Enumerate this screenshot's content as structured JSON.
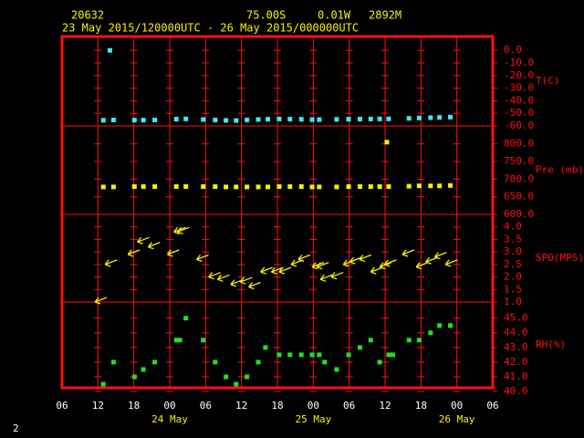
{
  "header": {
    "station": "20632",
    "latitude": "75.00S",
    "longitude": "0.01W",
    "elevation": "2892M",
    "period": "23 May 2015/120000UTC - 26 May 2015/000000UTC"
  },
  "footer": "2",
  "chart_data": [
    {
      "type": "scatter",
      "ylabel": "T(C)",
      "color": "#40e8f8",
      "ylim": [
        -60,
        11
      ],
      "yticks": [
        {
          "value": 0,
          "label": "0.0"
        },
        {
          "value": -10,
          "label": "-10.0"
        },
        {
          "value": -20,
          "label": "-20.0"
        },
        {
          "value": -30,
          "label": "-30.0"
        },
        {
          "value": -40,
          "label": "-40.0"
        },
        {
          "value": -50,
          "label": "-50.0"
        },
        {
          "value": -60,
          "label": "-60.0"
        }
      ],
      "x": [
        12.9,
        14.0,
        14.6,
        18.1,
        19.6,
        21.5,
        25.1,
        26.7,
        29.6,
        31.6,
        33.4,
        35.1,
        36.9,
        38.8,
        40.4,
        42.3,
        44.1,
        46.0,
        47.8,
        49.0,
        51.9,
        53.9,
        55.8,
        57.6,
        59.1,
        60.6,
        64.0,
        65.7,
        67.6,
        69.1,
        70.9
      ],
      "values": [
        -55.5,
        0.0,
        -55.3,
        -55.4,
        -55.4,
        -55.3,
        -54.6,
        -54.4,
        -54.9,
        -55.3,
        -55.6,
        -55.7,
        -55.2,
        -54.9,
        -54.7,
        -54.5,
        -54.6,
        -54.7,
        -55.0,
        -55.0,
        -54.8,
        -54.7,
        -54.6,
        -54.5,
        -54.4,
        -54.4,
        -54.0,
        -53.7,
        -53.4,
        -53.2,
        -53.0
      ]
    },
    {
      "type": "scatter",
      "ylabel": "Pre (mb)",
      "color": "#f8f000",
      "ylim": [
        600,
        851
      ],
      "yticks": [
        {
          "value": 800,
          "label": "800.0"
        },
        {
          "value": 750,
          "label": "750.0"
        },
        {
          "value": 700,
          "label": "700.0"
        },
        {
          "value": 650,
          "label": "650.0"
        },
        {
          "value": 600,
          "label": "600.0"
        }
      ],
      "x": [
        12.9,
        14.6,
        18.1,
        19.6,
        21.5,
        25.1,
        26.7,
        29.6,
        31.6,
        33.4,
        35.1,
        36.9,
        38.8,
        40.4,
        42.3,
        44.1,
        46.0,
        47.8,
        49.0,
        51.9,
        53.9,
        55.8,
        57.6,
        59.1,
        60.6,
        64.0,
        65.7,
        67.6,
        69.1,
        70.9,
        60.3
      ],
      "values": [
        678,
        678,
        679,
        679,
        679,
        679,
        679,
        679,
        679,
        678,
        678,
        678,
        678,
        678,
        679,
        679,
        679,
        678,
        678,
        678,
        679,
        679,
        679,
        679,
        679,
        680,
        681,
        681,
        681,
        682,
        805
      ]
    },
    {
      "type": "scatter",
      "marker": "arrow",
      "ylabel": "SPD(MPS)",
      "color": "#f8f000",
      "ylim": [
        1,
        4.5
      ],
      "yticks": [
        {
          "value": 4,
          "label": "4.0"
        },
        {
          "value": 3.5,
          "label": "3.5"
        },
        {
          "value": 3,
          "label": "3.0"
        },
        {
          "value": 2.5,
          "label": "2.5"
        },
        {
          "value": 2,
          "label": "2.0"
        },
        {
          "value": 1.5,
          "label": "1.5"
        },
        {
          "value": 1,
          "label": "1.0"
        }
      ],
      "x": [
        11.5,
        13.2,
        17.0,
        18.6,
        20.4,
        23.6,
        24.7,
        25.3,
        28.5,
        30.5,
        32.0,
        34.2,
        35.8,
        37.2,
        39.2,
        41.0,
        42.3,
        44.3,
        45.5,
        47.8,
        48.6,
        49.2,
        51.0,
        53.0,
        54.1,
        55.7,
        57.6,
        59.1,
        59.9,
        62.9,
        65.2,
        66.8,
        68.3,
        70.1
      ],
      "values": [
        1.0,
        2.5,
        2.9,
        3.4,
        3.2,
        2.9,
        3.8,
        3.8,
        2.7,
        2.0,
        1.9,
        1.7,
        1.8,
        1.6,
        2.2,
        2.2,
        2.2,
        2.5,
        2.7,
        2.4,
        2.4,
        1.9,
        2.0,
        2.5,
        2.6,
        2.7,
        2.2,
        2.4,
        2.5,
        2.9,
        2.4,
        2.6,
        2.8,
        2.5
      ]
    },
    {
      "type": "scatter",
      "ylabel": "RH(%)",
      "color": "#20e020",
      "ylim": [
        40.25,
        46.1
      ],
      "yticks": [
        {
          "value": 45,
          "label": "45.0"
        },
        {
          "value": 44,
          "label": "44.0"
        },
        {
          "value": 43,
          "label": "43.0"
        },
        {
          "value": 42,
          "label": "42.0"
        },
        {
          "value": 41,
          "label": "41.0"
        },
        {
          "value": 40,
          "label": "40.0"
        }
      ],
      "x": [
        12.9,
        14.6,
        18.1,
        19.6,
        21.5,
        25.1,
        25.7,
        26.7,
        29.6,
        31.6,
        33.4,
        35.1,
        36.9,
        38.8,
        40.0,
        42.3,
        44.1,
        46.0,
        47.8,
        49.0,
        49.9,
        51.9,
        53.9,
        55.8,
        57.6,
        59.1,
        60.6,
        61.3,
        64.0,
        65.7,
        67.6,
        69.1,
        70.9
      ],
      "values": [
        40.5,
        42.0,
        41.0,
        41.5,
        42.0,
        43.5,
        43.5,
        45.0,
        43.5,
        42.0,
        41.0,
        40.5,
        41.0,
        42.0,
        43.0,
        42.5,
        42.5,
        42.5,
        42.5,
        42.5,
        42.0,
        41.5,
        42.5,
        43.0,
        43.5,
        42.0,
        42.5,
        42.5,
        43.5,
        43.5,
        44.0,
        44.5,
        44.5
      ],
      "xlim": [
        6,
        78
      ],
      "xticks": [
        {
          "value": 6,
          "label": "06"
        },
        {
          "value": 12,
          "label": "12"
        },
        {
          "value": 18,
          "label": "18"
        },
        {
          "value": 24,
          "label": "00"
        },
        {
          "value": 30,
          "label": "06"
        },
        {
          "value": 36,
          "label": "12"
        },
        {
          "value": 42,
          "label": "18"
        },
        {
          "value": 48,
          "label": "00"
        },
        {
          "value": 54,
          "label": "06"
        },
        {
          "value": 60,
          "label": "12"
        },
        {
          "value": 66,
          "label": "18"
        },
        {
          "value": 72,
          "label": "00"
        },
        {
          "value": 78,
          "label": "06"
        }
      ],
      "date_labels": [
        {
          "value": 24,
          "label": "24 May"
        },
        {
          "value": 48,
          "label": "25 May"
        },
        {
          "value": 72,
          "label": "26 May"
        }
      ]
    }
  ]
}
